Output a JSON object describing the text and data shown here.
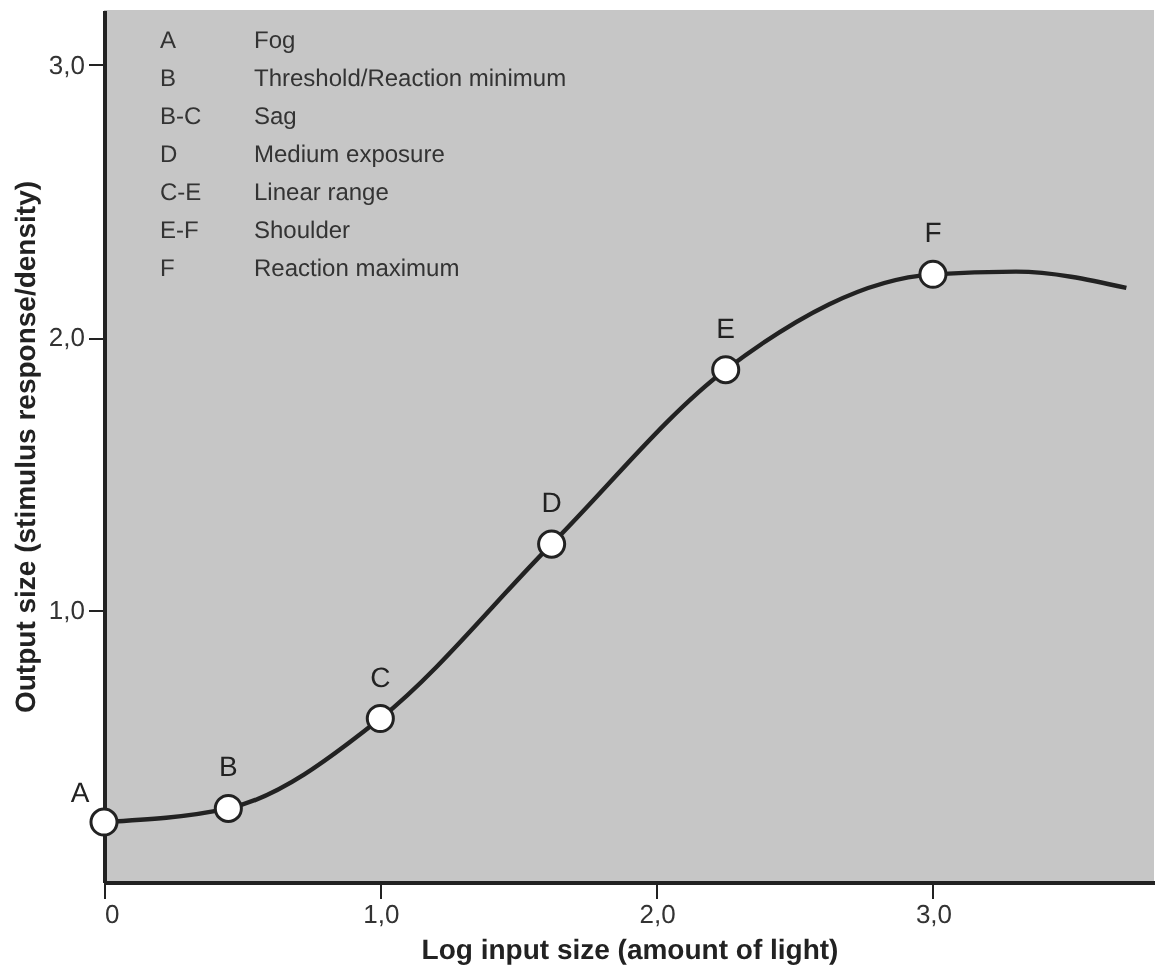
{
  "chart_data": {
    "type": "line",
    "xlabel": "Log input size (amount of light)",
    "ylabel": "Output size (stimulus response/density)",
    "xlim": [
      0,
      3.8
    ],
    "ylim": [
      0,
      3.2
    ],
    "xticks": [
      {
        "value": 0,
        "label": "0"
      },
      {
        "value": 1,
        "label": "1,0"
      },
      {
        "value": 2,
        "label": "2,0"
      },
      {
        "value": 3,
        "label": "3,0"
      }
    ],
    "yticks": [
      {
        "value": 1,
        "label": "1,0"
      },
      {
        "value": 2,
        "label": "2,0"
      },
      {
        "value": 3,
        "label": "3,0"
      }
    ],
    "grid": false,
    "series": [
      {
        "type": "line",
        "color": "#222222",
        "line_style": "solid",
        "marker": "none",
        "x": [
          0,
          0.45,
          1.0,
          1.62,
          2.25,
          3.0,
          3.3,
          3.7
        ],
        "values": [
          0.22,
          0.27,
          0.6,
          1.24,
          1.88,
          2.23,
          2.24,
          2.18
        ]
      },
      {
        "type": "scatter",
        "color": "#ffffff",
        "marker": "circle",
        "x": [
          0,
          0.45,
          1.0,
          1.62,
          2.25,
          3.0
        ],
        "values": [
          0.22,
          0.27,
          0.6,
          1.24,
          1.88,
          2.23
        ]
      }
    ],
    "annotations": [
      {
        "text": "A",
        "x": 0,
        "y": 0.22
      },
      {
        "text": "B",
        "x": 0.45,
        "y": 0.27
      },
      {
        "text": "C",
        "x": 1.0,
        "y": 0.6
      },
      {
        "text": "D",
        "x": 1.62,
        "y": 1.24
      },
      {
        "text": "E",
        "x": 2.25,
        "y": 1.88
      },
      {
        "text": "F",
        "x": 3.0,
        "y": 2.23
      },
      "A Fog",
      "B Threshold/Reaction minimum",
      "B-C Sag",
      "D Medium exposure",
      "C-E Linear range",
      "E-F Shoulder",
      "F Reaction maximum"
    ]
  }
}
